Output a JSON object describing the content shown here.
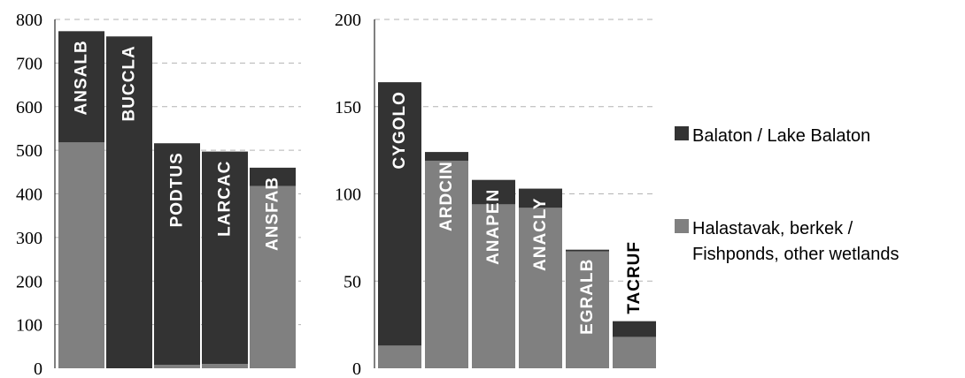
{
  "chart_data": [
    {
      "type": "bar",
      "stacked": true,
      "categories": [
        "ANSALB",
        "BUCCLA",
        "PODTUS",
        "LARCAC",
        "ANSFAB"
      ],
      "series": [
        {
          "name": "Halastavak, berkek / Fishponds, other wetlands",
          "values": [
            518,
            0,
            8,
            10,
            418
          ],
          "color": "#808080"
        },
        {
          "name": "Balaton / Lake Balaton",
          "values": [
            255,
            761,
            508,
            487,
            42
          ],
          "color": "#333333"
        }
      ],
      "ylim": [
        0,
        800
      ],
      "yticks": [
        0,
        100,
        200,
        300,
        400,
        500,
        600,
        700,
        800
      ],
      "grid": true
    },
    {
      "type": "bar",
      "stacked": true,
      "categories": [
        "CYGOLO",
        "ARDCIN",
        "ANAPEN",
        "ANACLY",
        "EGRALB",
        "TACRUF"
      ],
      "series": [
        {
          "name": "Halastavak, berkek / Fishponds, other wetlands",
          "values": [
            13,
            119,
            94,
            92,
            67,
            18
          ],
          "color": "#808080"
        },
        {
          "name": "Balaton / Lake Balaton",
          "values": [
            151,
            5,
            14,
            11,
            1,
            9
          ],
          "color": "#333333"
        }
      ],
      "ylim": [
        0,
        200
      ],
      "yticks": [
        0,
        50,
        100,
        150,
        200
      ],
      "grid": true
    }
  ],
  "legend": {
    "placement": "right",
    "entries": [
      {
        "lines": [
          "Balaton / Lake Balaton"
        ],
        "color": "#333333"
      },
      {
        "lines": [
          "Halastavak, berkek /",
          "Fishponds, other wetlands"
        ],
        "color": "#808080"
      }
    ]
  }
}
